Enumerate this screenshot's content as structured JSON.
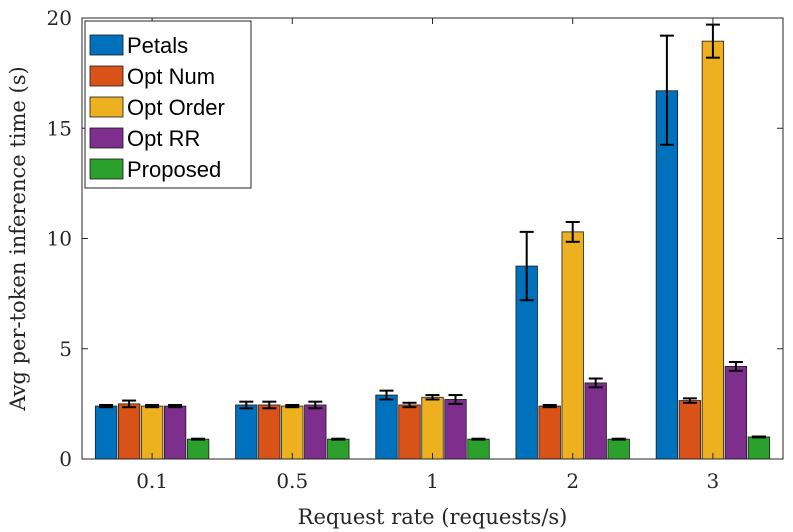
{
  "chart_data": {
    "type": "bar",
    "title": "",
    "xlabel": "Request rate (requests/s)",
    "ylabel": "Avg per-token inference time (s)",
    "categories": [
      "0.1",
      "0.5",
      "1",
      "2",
      "3"
    ],
    "ylim": [
      0,
      20
    ],
    "yticks": [
      "0",
      "5",
      "10",
      "15",
      "20"
    ],
    "grid": false,
    "legend_position": "top-left",
    "series": [
      {
        "name": "Petals",
        "color": "#0072BD",
        "values": [
          2.4,
          2.45,
          2.9,
          8.75,
          16.7
        ],
        "err_low": [
          2.35,
          2.3,
          2.7,
          7.2,
          14.25
        ],
        "err_high": [
          2.45,
          2.6,
          3.1,
          10.3,
          19.2
        ]
      },
      {
        "name": "Opt Num",
        "color": "#D95319",
        "values": [
          2.5,
          2.45,
          2.45,
          2.4,
          2.65
        ],
        "err_low": [
          2.35,
          2.3,
          2.35,
          2.35,
          2.55
        ],
        "err_high": [
          2.65,
          2.6,
          2.55,
          2.45,
          2.75
        ]
      },
      {
        "name": "Opt Order",
        "color": "#EDB120",
        "values": [
          2.4,
          2.4,
          2.8,
          10.3,
          18.95
        ],
        "err_low": [
          2.35,
          2.35,
          2.7,
          9.85,
          18.2
        ],
        "err_high": [
          2.45,
          2.45,
          2.9,
          10.75,
          19.7
        ]
      },
      {
        "name": "Opt RR",
        "color": "#7E2F8E",
        "values": [
          2.4,
          2.45,
          2.7,
          3.45,
          4.2
        ],
        "err_low": [
          2.35,
          2.3,
          2.5,
          3.25,
          4.0
        ],
        "err_high": [
          2.45,
          2.6,
          2.9,
          3.65,
          4.4
        ]
      },
      {
        "name": "Proposed",
        "color": "#2CA02C",
        "values": [
          0.9,
          0.9,
          0.9,
          0.9,
          1.0
        ],
        "err_low": [
          0.88,
          0.88,
          0.88,
          0.88,
          0.98
        ],
        "err_high": [
          0.92,
          0.92,
          0.92,
          0.92,
          1.02
        ]
      }
    ]
  }
}
